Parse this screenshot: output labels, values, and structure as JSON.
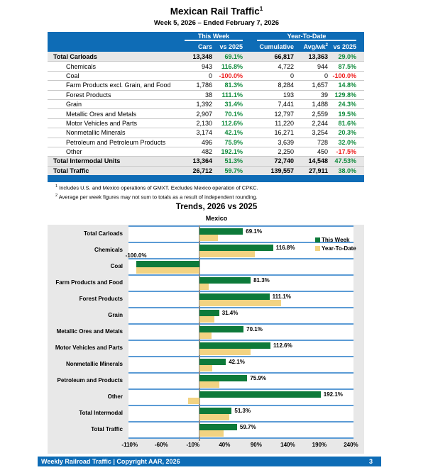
{
  "header": {
    "title": "Mexican Rail Traffic",
    "title_sup": "1",
    "subtitle": "Week 5, 2026 – Ended February 7, 2026"
  },
  "table": {
    "group_headers": [
      "This Week",
      "Year-To-Date"
    ],
    "columns": [
      {
        "label": "Cars"
      },
      {
        "label": "vs 2025"
      },
      {
        "label": "Cumulative"
      },
      {
        "label": "Avg/wk",
        "sup": "2"
      },
      {
        "label": "vs 2025"
      }
    ],
    "rows": [
      {
        "label": "Total Carloads",
        "cars": "13,348",
        "tw": "69.1%",
        "cum": "66,817",
        "avg": "13,363",
        "ytd": "29.0%",
        "bold": true
      },
      {
        "label": "Chemicals",
        "cars": "943",
        "tw": "116.8%",
        "cum": "4,722",
        "avg": "944",
        "ytd": "87.5%",
        "bold": false
      },
      {
        "label": "Coal",
        "cars": "0",
        "tw": "-100.0%",
        "cum": "0",
        "avg": "0",
        "ytd": "-100.0%",
        "bold": false
      },
      {
        "label": "Farm Products excl. Grain, and Food",
        "cars": "1,786",
        "tw": "81.3%",
        "cum": "8,284",
        "avg": "1,657",
        "ytd": "14.8%",
        "bold": false
      },
      {
        "label": "Forest Products",
        "cars": "38",
        "tw": "111.1%",
        "cum": "193",
        "avg": "39",
        "ytd": "129.8%",
        "bold": false
      },
      {
        "label": "Grain",
        "cars": "1,392",
        "tw": "31.4%",
        "cum": "7,441",
        "avg": "1,488",
        "ytd": "24.3%",
        "bold": false
      },
      {
        "label": "Metallic Ores and Metals",
        "cars": "2,907",
        "tw": "70.1%",
        "cum": "12,797",
        "avg": "2,559",
        "ytd": "19.5%",
        "bold": false
      },
      {
        "label": "Motor Vehicles and Parts",
        "cars": "2,130",
        "tw": "112.6%",
        "cum": "11,220",
        "avg": "2,244",
        "ytd": "81.6%",
        "bold": false
      },
      {
        "label": "Nonmetallic Minerals",
        "cars": "3,174",
        "tw": "42.1%",
        "cum": "16,271",
        "avg": "3,254",
        "ytd": "20.3%",
        "bold": false
      },
      {
        "label": "Petroleum and Petroleum Products",
        "cars": "496",
        "tw": "75.9%",
        "cum": "3,639",
        "avg": "728",
        "ytd": "32.0%",
        "bold": false
      },
      {
        "label": "Other",
        "cars": "482",
        "tw": "192.1%",
        "cum": "2,250",
        "avg": "450",
        "ytd": "-17.5%",
        "bold": false
      },
      {
        "label": "Total Intermodal Units",
        "cars": "13,364",
        "tw": "51.3%",
        "cum": "72,740",
        "avg": "14,548",
        "ytd": "47.53%",
        "bold": true
      },
      {
        "label": "Total Traffic",
        "cars": "26,712",
        "tw": "59.7%",
        "cum": "139,557",
        "avg": "27,911",
        "ytd": "38.0%",
        "bold": true
      }
    ]
  },
  "footnotes": [
    {
      "sup": "1",
      "text": "Includes U.S. and Mexico operations of GMXT. Excludes Mexico operation of CPKC."
    },
    {
      "sup": "2",
      "text": "Average per week figures may not sum to totals as a result of independent rounding."
    }
  ],
  "chart": {
    "title": "Trends, 2026 vs 2025",
    "subtitle": "Mexico"
  },
  "chart_data": {
    "type": "bar",
    "orientation": "horizontal",
    "title": "Trends, 2026 vs 2025",
    "subtitle": "Mexico",
    "categories": [
      "Total Carloads",
      "Chemicals",
      "Coal",
      "Farm Products and Food",
      "Forest Products",
      "Grain",
      "Metallic Ores and Metals",
      "Motor Vehicles and Parts",
      "Nonmetallic Minerals",
      "Petroleum and Products",
      "Other",
      "Total Intermodal",
      "Total Traffic"
    ],
    "series": [
      {
        "name": "This Week",
        "color": "#0d7a3a",
        "values": [
          69.1,
          116.8,
          -100.0,
          81.3,
          111.1,
          31.4,
          70.1,
          112.6,
          42.1,
          75.9,
          192.1,
          51.3,
          59.7
        ]
      },
      {
        "name": "Year-To-Date",
        "color": "#f2d382",
        "values": [
          29.0,
          87.5,
          -100.0,
          14.8,
          129.8,
          24.3,
          19.5,
          81.6,
          20.3,
          32.0,
          -17.5,
          47.53,
          38.0
        ]
      }
    ],
    "bar_labels": [
      "69.1%",
      "116.8%",
      "-100.0%",
      "81.3%",
      "111.1%",
      "31.4%",
      "70.1%",
      "112.6%",
      "42.1%",
      "75.9%",
      "192.1%",
      "51.3%",
      "59.7%"
    ],
    "xlim": [
      -112,
      244
    ],
    "x_ticks": [
      "-110%",
      "-60%",
      "-10%",
      "40%",
      "90%",
      "140%",
      "190%",
      "240%"
    ],
    "legend_position": "top-right",
    "grid": "category-separator-lines"
  },
  "footer": {
    "left": "Weekly Railroad Traffic | Copyright AAR, 2026",
    "page": "3"
  },
  "colors": {
    "header_blue": "#0e6cb6",
    "separator_blue": "#5b9bd5",
    "bar_green": "#0d7a3a",
    "bar_tan": "#f2d382",
    "positive_text_green": "#108a3c",
    "negative_text_red": "#ee1c1c",
    "total_row_gray": "#e7e7e7",
    "chart_background": "#e8e8e8"
  }
}
